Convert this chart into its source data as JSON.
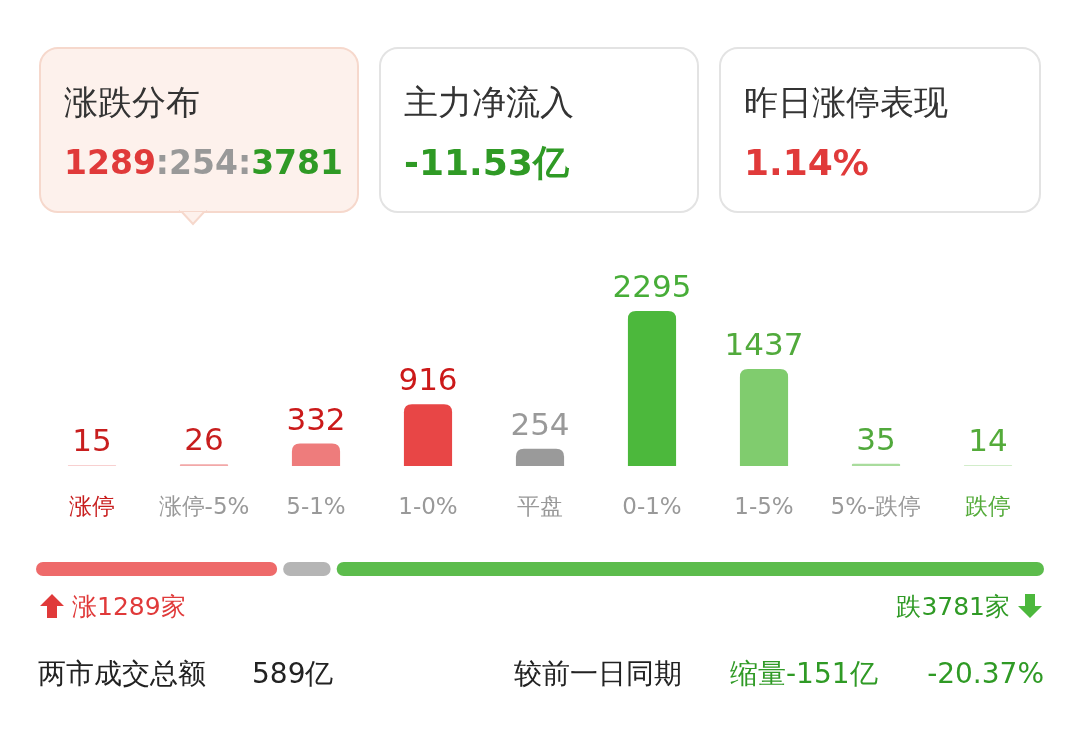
{
  "chart_data": {
    "type": "bar",
    "categories": [
      "涨停",
      "涨停-5%",
      "5-1%",
      "1-0%",
      "平盘",
      "0-1%",
      "1-5%",
      "5%-跌停",
      "跌停"
    ],
    "values": [
      15,
      26,
      332,
      916,
      254,
      2295,
      1437,
      35,
      14
    ],
    "colors": [
      "#f8d0d0",
      "#f2a8a8",
      "#ee7c7c",
      "#e84646",
      "#9a9a9a",
      "#4cb83c",
      "#80cc6e",
      "#a9dc9d",
      "#d2edca"
    ],
    "data_labels": true,
    "annotations": [
      "涨跌分布",
      "1289:254:3781",
      "主力净流入",
      "-11.53亿",
      "昨日涨停表现",
      "1.14%",
      "涨1289家",
      "跌3781家",
      "两市成交总额",
      "589亿",
      "较前一日同期",
      "缩量-151亿",
      "-20.37%"
    ]
  }
}
